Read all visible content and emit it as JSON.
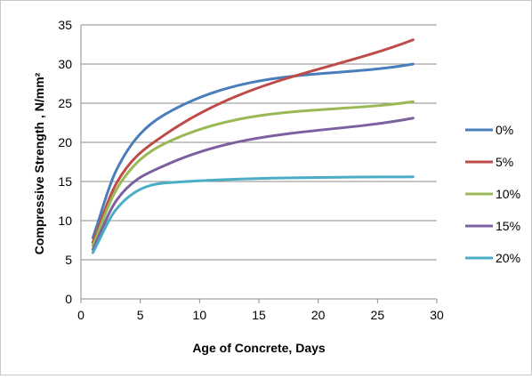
{
  "chart_data": {
    "type": "line",
    "title": "",
    "xlabel": "Age of Concrete, Days",
    "ylabel": "Compressive Strength , N/mm²",
    "xlim": [
      0,
      30
    ],
    "ylim": [
      0,
      35
    ],
    "xticks": [
      0,
      5,
      10,
      15,
      20,
      25,
      30
    ],
    "yticks": [
      0,
      5,
      10,
      15,
      20,
      25,
      30,
      35
    ],
    "grid": "horizontal",
    "legend_position": "right",
    "x": [
      1,
      3,
      7,
      28
    ],
    "series": [
      {
        "name": "0%",
        "color": "#4a7ebb",
        "values": [
          7.8,
          16.5,
          23.5,
          30.0
        ]
      },
      {
        "name": "5%",
        "color": "#be4b48",
        "values": [
          7.2,
          14.8,
          20.9,
          33.1
        ]
      },
      {
        "name": "10%",
        "color": "#98b954",
        "values": [
          6.8,
          14.0,
          19.8,
          25.2
        ]
      },
      {
        "name": "15%",
        "color": "#7d60a0",
        "values": [
          6.3,
          12.6,
          17.0,
          23.1
        ]
      },
      {
        "name": "20%",
        "color": "#4bacc6",
        "values": [
          5.9,
          11.5,
          14.8,
          15.6
        ]
      }
    ]
  }
}
